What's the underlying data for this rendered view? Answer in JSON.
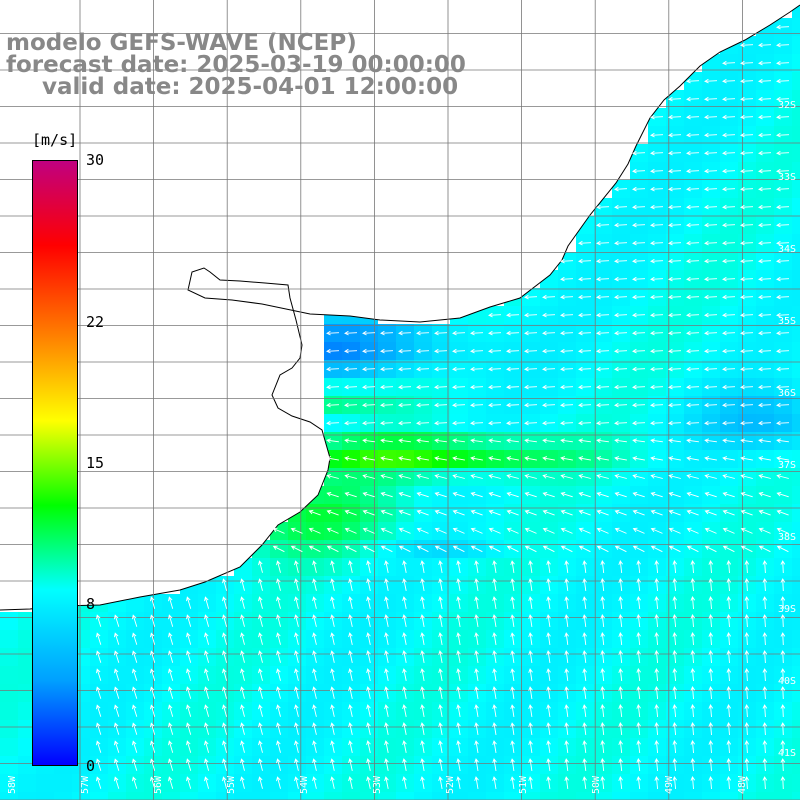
{
  "header": {
    "line1": "modelo GEFS-WAVE (NCEP)",
    "line2": "forecast date: 2025-03-19 00:00:00",
    "line3": "valid date: 2025-04-01 12:00:00"
  },
  "colorbar": {
    "unit": "[m/s]",
    "ticks": [
      {
        "value": 30,
        "label": "30"
      },
      {
        "value": 22,
        "label": "22"
      },
      {
        "value": 15,
        "label": "15"
      },
      {
        "value": 8,
        "label": "8"
      },
      {
        "value": 0,
        "label": "0"
      }
    ],
    "colors": [
      "#0000ff",
      "#00a0ff",
      "#00ffff",
      "#00ff00",
      "#ffff00",
      "#ff8000",
      "#ff0000",
      "#c00080"
    ]
  },
  "map": {
    "land_color": "#ffffff",
    "coastline_color": "#000000",
    "grid_color": "#777777",
    "arrow_color": "#ffffff",
    "lat_labels": [
      "32S",
      "33S",
      "34S",
      "35S",
      "36S",
      "37S",
      "38S",
      "39S",
      "40S",
      "41S"
    ],
    "lon_labels": [
      "58W",
      "57W",
      "56W",
      "55W",
      "54W",
      "53W",
      "52W",
      "51W",
      "50W",
      "49W",
      "48W"
    ]
  }
}
